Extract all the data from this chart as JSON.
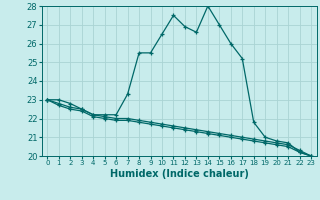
{
  "xlabel": "Humidex (Indice chaleur)",
  "xlim": [
    -0.5,
    23.5
  ],
  "ylim": [
    20,
    28
  ],
  "xticks": [
    0,
    1,
    2,
    3,
    4,
    5,
    6,
    7,
    8,
    9,
    10,
    11,
    12,
    13,
    14,
    15,
    16,
    17,
    18,
    19,
    20,
    21,
    22,
    23
  ],
  "yticks": [
    20,
    21,
    22,
    23,
    24,
    25,
    26,
    27,
    28
  ],
  "bg_color": "#c8ecec",
  "grid_color": "#aad4d4",
  "line_color": "#006868",
  "line1_x": [
    0,
    1,
    2,
    3,
    4,
    5,
    6,
    7,
    8,
    9,
    10,
    11,
    12,
    13,
    14,
    15,
    16,
    17,
    18,
    19,
    20,
    21,
    22,
    23
  ],
  "line1_y": [
    23.0,
    23.0,
    22.8,
    22.5,
    22.2,
    22.2,
    22.2,
    23.3,
    25.5,
    25.5,
    26.5,
    27.5,
    26.9,
    26.6,
    28.0,
    27.0,
    26.0,
    25.2,
    21.8,
    21.0,
    20.8,
    20.7,
    20.2,
    20.0
  ],
  "line2_x": [
    0,
    1,
    2,
    3,
    4,
    5,
    6,
    7,
    8,
    9,
    10,
    11,
    12,
    13,
    14,
    15,
    16,
    17,
    18,
    19,
    20,
    21,
    22,
    23
  ],
  "line2_y": [
    23.0,
    22.8,
    22.6,
    22.5,
    22.2,
    22.1,
    22.0,
    22.0,
    21.9,
    21.8,
    21.7,
    21.6,
    21.5,
    21.4,
    21.3,
    21.2,
    21.1,
    21.0,
    20.9,
    20.8,
    20.7,
    20.6,
    20.3,
    20.0
  ],
  "line3_x": [
    0,
    1,
    2,
    3,
    4,
    5,
    6,
    7,
    8,
    9,
    10,
    11,
    12,
    13,
    14,
    15,
    16,
    17,
    18,
    19,
    20,
    21,
    22,
    23
  ],
  "line3_y": [
    23.0,
    22.7,
    22.5,
    22.4,
    22.1,
    22.0,
    21.9,
    21.9,
    21.8,
    21.7,
    21.6,
    21.5,
    21.4,
    21.3,
    21.2,
    21.1,
    21.0,
    20.9,
    20.8,
    20.7,
    20.6,
    20.5,
    20.2,
    20.0
  ]
}
